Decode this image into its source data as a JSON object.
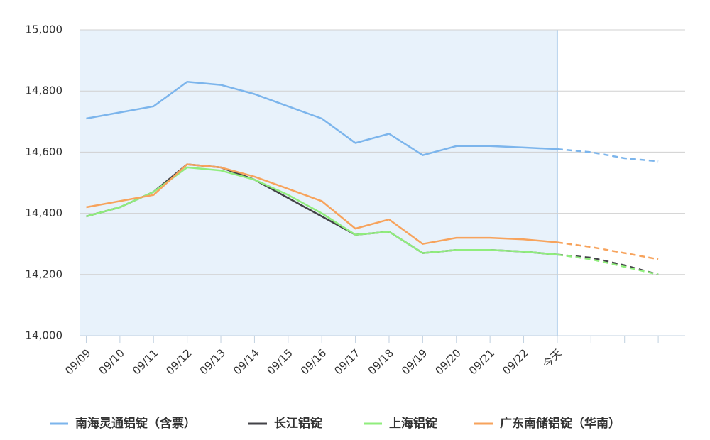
{
  "chart_data": {
    "type": "line",
    "categories": [
      "09/09",
      "09/10",
      "09/11",
      "09/12",
      "09/13",
      "09/14",
      "09/15",
      "09/16",
      "09/17",
      "09/18",
      "09/19",
      "09/20",
      "09/21",
      "09/22",
      "今天",
      null,
      null,
      null
    ],
    "series": [
      {
        "name": "南海灵通铝锭（含票）",
        "color": "#7cb5ec",
        "values": [
          14710,
          14730,
          14750,
          14830,
          14820,
          14790,
          14750,
          14710,
          14630,
          14660,
          14590,
          14620,
          14620,
          14615,
          14610,
          14600,
          14580,
          14570
        ]
      },
      {
        "name": "长江铝锭",
        "color": "#434348",
        "values": [
          14390,
          14420,
          14470,
          14560,
          14550,
          14510,
          14450,
          14390,
          14330,
          14340,
          14270,
          14280,
          14280,
          14275,
          14265,
          14255,
          14230,
          14200
        ]
      },
      {
        "name": "上海铝锭",
        "color": "#90ed7d",
        "values": [
          14390,
          14420,
          14470,
          14550,
          14540,
          14510,
          14460,
          14400,
          14330,
          14340,
          14270,
          14280,
          14280,
          14275,
          14265,
          14250,
          14225,
          14200
        ]
      },
      {
        "name": "广东南储铝锭（华南）",
        "color": "#f7a35c",
        "values": [
          14420,
          14440,
          14460,
          14560,
          14550,
          14520,
          14480,
          14440,
          14350,
          14380,
          14300,
          14320,
          14320,
          14315,
          14305,
          14290,
          14270,
          14250
        ]
      }
    ],
    "ylim": [
      14000,
      15000
    ],
    "yticks": [
      {
        "value": 14000,
        "label": "14,000"
      },
      {
        "value": 14200,
        "label": "14,200"
      },
      {
        "value": 14400,
        "label": "14,400"
      },
      {
        "value": 14600,
        "label": "14,600"
      },
      {
        "value": 14800,
        "label": "14,800"
      },
      {
        "value": 15000,
        "label": "15,000"
      }
    ],
    "grid": true
  }
}
